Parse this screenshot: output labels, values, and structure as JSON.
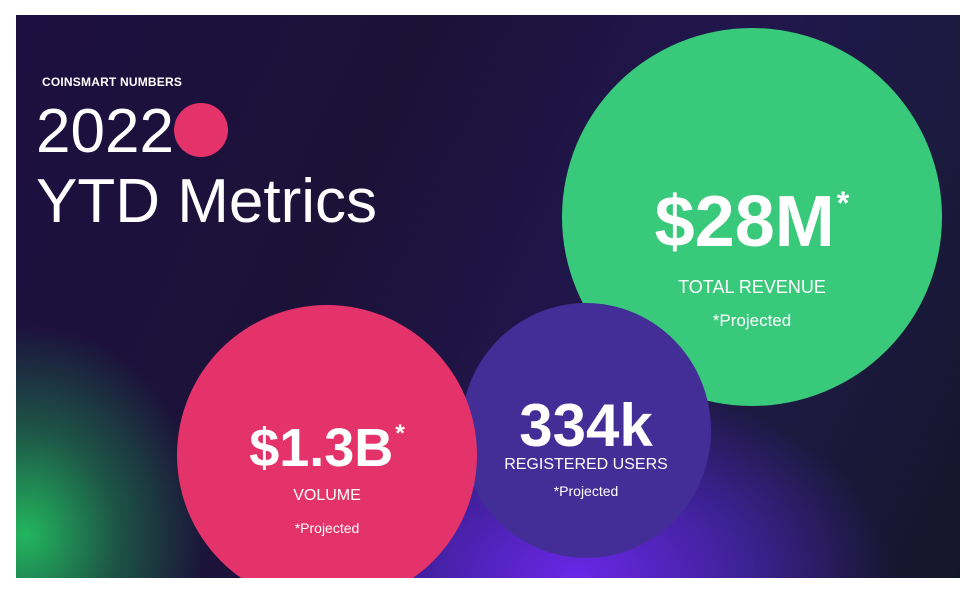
{
  "slide": {
    "eyebrow": "COINSMART NUMBERS",
    "title_line1": "2022",
    "title_line2": "YTD Metrics"
  },
  "metrics": [
    {
      "value": "$28M",
      "marker": "*",
      "label": "TOTAL REVENUE",
      "note": "*Projected",
      "color": "#38c97a"
    },
    {
      "value": "$1.3B",
      "marker": "*",
      "label": "VOLUME",
      "note": "*Projected",
      "color": "#e3336a"
    },
    {
      "value": "334k",
      "label": "REGISTERED USERS",
      "note": "*Projected",
      "color": "#432e98"
    }
  ],
  "colors": {
    "accent_dot": "#e3336a",
    "background_dark": "#1d1040",
    "glow_green": "#23be5f",
    "glow_purple": "#6e28f0"
  }
}
